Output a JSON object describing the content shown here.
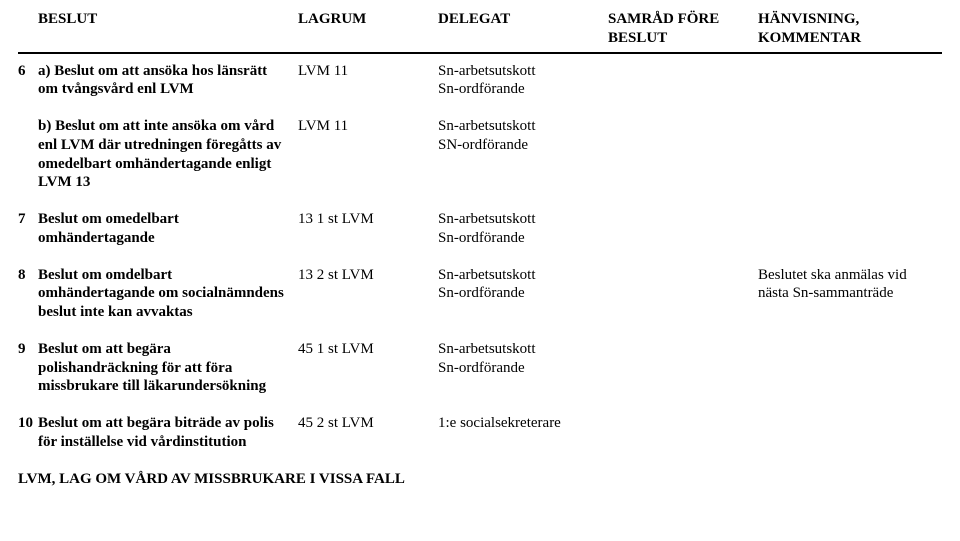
{
  "header": {
    "col1": "BESLUT",
    "col2": "LAGRUM",
    "col3": "DELEGAT",
    "col4_line1": "SAMRÅD FÖRE",
    "col4_line2": "BESLUT",
    "col5_line1": "HÄNVISNING,",
    "col5_line2": "KOMMENTAR"
  },
  "rows": [
    {
      "n": "6",
      "beslut": "a) Beslut om att ansöka hos länsrätt om tvångsvård enl LVM",
      "lagrum": "LVM 11",
      "delegat_l1": "Sn-arbetsutskott",
      "delegat_l2": "Sn-ordförande",
      "samrad": "",
      "komm": ""
    },
    {
      "n": "",
      "beslut": "b) Beslut om att inte ansöka om vård enl LVM där utredningen föregåtts av omedelbart omhändertagande enligt LVM 13",
      "lagrum": "LVM 11",
      "delegat_l1": "Sn-arbetsutskott",
      "delegat_l2": "SN-ordförande",
      "samrad": "",
      "komm": ""
    },
    {
      "n": "7",
      "beslut": "Beslut om omedelbart omhändertagande",
      "lagrum": "13 1 st LVM",
      "delegat_l1": "Sn-arbetsutskott",
      "delegat_l2": "Sn-ordförande",
      "samrad": "",
      "komm": ""
    },
    {
      "n": "8",
      "beslut": "Beslut om omdelbart omhändertagande om socialnämndens beslut inte kan avvaktas",
      "lagrum": "13 2 st LVM",
      "delegat_l1": "Sn-arbetsutskott",
      "delegat_l2": "Sn-ordförande",
      "samrad": "",
      "komm": "Beslutet ska anmälas vid nästa Sn-sammanträde"
    },
    {
      "n": "9",
      "beslut": "Beslut om att begära polishandräckning för att föra missbrukare till läkarundersökning",
      "lagrum": "45 1 st LVM",
      "delegat_l1": "Sn-arbetsutskott",
      "delegat_l2": "Sn-ordförande",
      "samrad": "",
      "komm": ""
    },
    {
      "n": "10",
      "beslut": "Beslut om att begära biträde av polis för inställelse vid vårdinstitution",
      "lagrum": "45 2 st LVM",
      "delegat_l1": "1:e socialsekreterare",
      "delegat_l2": "",
      "samrad": "",
      "komm": ""
    }
  ],
  "footer": "LVM, LAG OM VÅRD AV MISSBRUKARE I VISSA FALL"
}
